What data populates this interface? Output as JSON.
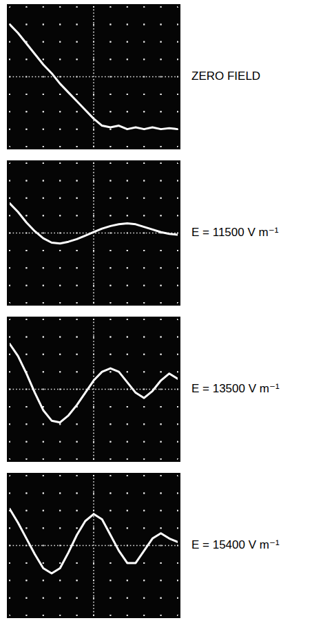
{
  "chart_data": [
    {
      "type": "line",
      "title": "ZERO FIELD",
      "x": [
        0,
        0.5,
        1,
        1.5,
        2,
        2.5,
        3,
        3.5,
        4,
        4.5,
        5,
        5.5,
        6,
        6.5,
        7,
        7.5,
        8,
        8.5,
        9,
        9.5,
        10
      ],
      "series": [
        {
          "color": "#ffffff",
          "values": [
            3.0,
            2.5,
            1.9,
            1.3,
            0.7,
            0.2,
            -0.4,
            -0.9,
            -1.4,
            -1.9,
            -2.4,
            -2.8,
            -2.9,
            -2.8,
            -3.0,
            -2.9,
            -3.0,
            -2.9,
            -3.0,
            -2.95,
            -3.0
          ]
        }
      ],
      "xlim": [
        0,
        10
      ],
      "ylim": [
        -4,
        4
      ],
      "xticks": [
        0,
        1,
        2,
        3,
        4,
        5,
        6,
        7,
        8,
        9,
        10
      ],
      "yticks": [
        -4,
        -3,
        -2,
        -1,
        0,
        1,
        2,
        3,
        4
      ],
      "grid": true,
      "tick_labels": false
    },
    {
      "type": "line",
      "title": "E = 11500 V m⁻¹",
      "x": [
        0,
        0.5,
        1,
        1.5,
        2,
        2.5,
        3,
        3.5,
        4,
        4.5,
        5,
        5.5,
        6,
        6.5,
        7,
        7.5,
        8,
        8.5,
        9,
        9.5,
        10
      ],
      "series": [
        {
          "color": "#ffffff",
          "values": [
            1.7,
            1.2,
            0.6,
            0.1,
            -0.3,
            -0.55,
            -0.6,
            -0.5,
            -0.35,
            -0.15,
            0.05,
            0.25,
            0.4,
            0.5,
            0.55,
            0.5,
            0.35,
            0.2,
            0.05,
            -0.05,
            -0.1
          ]
        }
      ],
      "xlim": [
        0,
        10
      ],
      "ylim": [
        -4,
        4
      ],
      "xticks": [
        0,
        1,
        2,
        3,
        4,
        5,
        6,
        7,
        8,
        9,
        10
      ],
      "yticks": [
        -4,
        -3,
        -2,
        -1,
        0,
        1,
        2,
        3,
        4
      ],
      "grid": true,
      "tick_labels": false
    },
    {
      "type": "line",
      "title": "E = 13500 V m⁻¹",
      "x": [
        0,
        0.5,
        1,
        1.5,
        2,
        2.5,
        3,
        3.5,
        4,
        4.5,
        5,
        5.5,
        6,
        6.5,
        7,
        7.5,
        8,
        8.5,
        9,
        9.5,
        10
      ],
      "series": [
        {
          "color": "#ffffff",
          "values": [
            2.6,
            1.9,
            0.9,
            -0.2,
            -1.2,
            -1.8,
            -1.9,
            -1.5,
            -0.9,
            -0.2,
            0.5,
            1.0,
            1.2,
            1.0,
            0.4,
            -0.2,
            -0.5,
            -0.1,
            0.5,
            0.9,
            0.6
          ]
        }
      ],
      "xlim": [
        0,
        10
      ],
      "ylim": [
        -4,
        4
      ],
      "xticks": [
        0,
        1,
        2,
        3,
        4,
        5,
        6,
        7,
        8,
        9,
        10
      ],
      "yticks": [
        -4,
        -3,
        -2,
        -1,
        0,
        1,
        2,
        3,
        4
      ],
      "grid": true,
      "tick_labels": false
    },
    {
      "type": "line",
      "title": "E = 15400 V m⁻¹",
      "x": [
        0,
        0.5,
        1,
        1.5,
        2,
        2.5,
        3,
        3.5,
        4,
        4.5,
        5,
        5.5,
        6,
        6.5,
        7,
        7.5,
        8,
        8.5,
        9,
        9.5,
        10
      ],
      "series": [
        {
          "color": "#ffffff",
          "values": [
            2.1,
            1.3,
            0.4,
            -0.5,
            -1.3,
            -1.6,
            -1.3,
            -0.4,
            0.6,
            1.4,
            1.8,
            1.5,
            0.6,
            -0.3,
            -1.0,
            -1.0,
            -0.3,
            0.4,
            0.7,
            0.4,
            0.2
          ]
        }
      ],
      "xlim": [
        0,
        10
      ],
      "ylim": [
        -4,
        4
      ],
      "xticks": [
        0,
        1,
        2,
        3,
        4,
        5,
        6,
        7,
        8,
        9,
        10
      ],
      "yticks": [
        -4,
        -3,
        -2,
        -1,
        0,
        1,
        2,
        3,
        4
      ],
      "grid": true,
      "tick_labels": false
    }
  ]
}
